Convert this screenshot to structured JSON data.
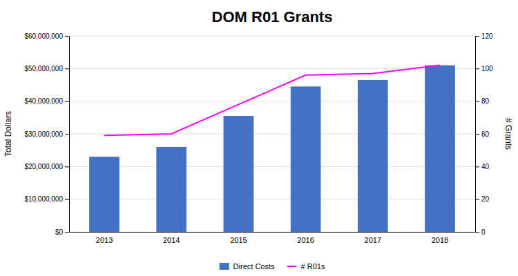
{
  "chart_data": {
    "type": "bar",
    "title": "DOM R01 Grants",
    "categories": [
      "2013",
      "2014",
      "2015",
      "2016",
      "2017",
      "2018"
    ],
    "series": [
      {
        "name": "Direct Costs",
        "type": "bar",
        "color": "#4472C4",
        "values": [
          23000000,
          26000000,
          35500000,
          44500000,
          46500000,
          51000000
        ]
      },
      {
        "name": "# R01s",
        "type": "line",
        "color": "#FF00FF",
        "axis": "y2",
        "values": [
          59,
          60,
          78,
          96,
          97,
          102
        ]
      }
    ],
    "ylabel": "Total Dollars",
    "y2label": "# Grants",
    "ylim": [
      0,
      60000000
    ],
    "yticks": [
      {
        "value": 0,
        "label": "$0"
      },
      {
        "value": 10000000,
        "label": "$10,000,000"
      },
      {
        "value": 20000000,
        "label": "$20,000,000"
      },
      {
        "value": 30000000,
        "label": "$30,000,000"
      },
      {
        "value": 40000000,
        "label": "$40,000,000"
      },
      {
        "value": 50000000,
        "label": "$50,000,000"
      },
      {
        "value": 60000000,
        "label": "$60,000,000"
      }
    ],
    "y2lim": [
      0,
      120
    ],
    "y2ticks": [
      0,
      20,
      40,
      60,
      80,
      100,
      120
    ],
    "grid": true,
    "legend": "bottom"
  }
}
